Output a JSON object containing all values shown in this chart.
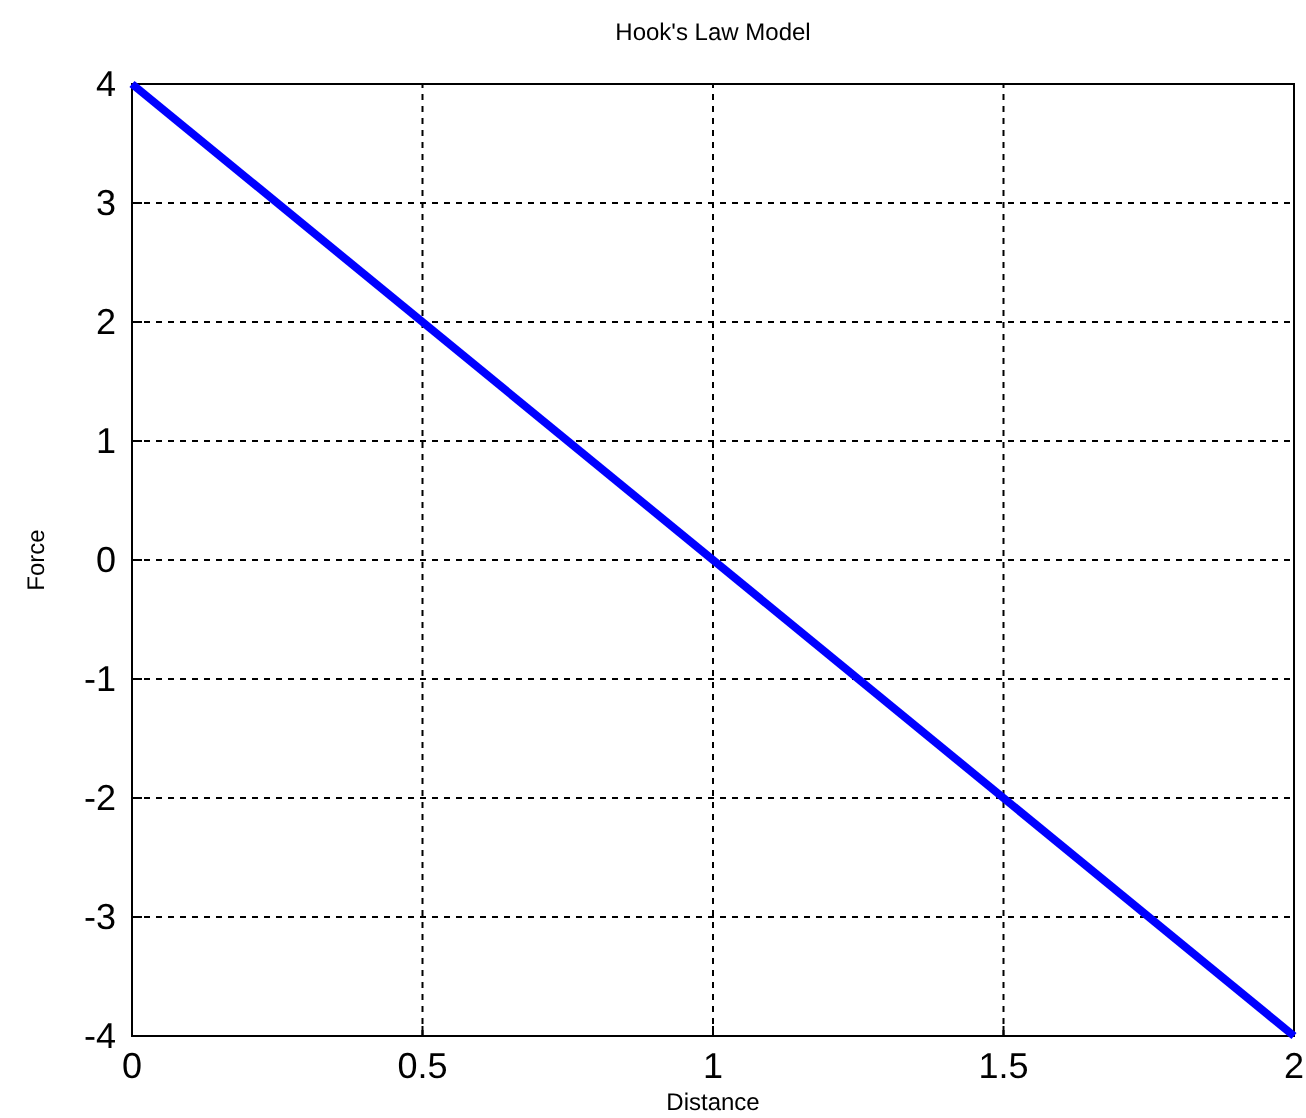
{
  "chart_data": {
    "type": "line",
    "title": "Hook's Law Model",
    "xlabel": "Distance",
    "ylabel": "Force",
    "xlim": [
      0,
      2
    ],
    "ylim": [
      -4,
      4
    ],
    "xticks": [
      0,
      0.5,
      1,
      1.5,
      2
    ],
    "yticks": [
      -4,
      -3,
      -2,
      -1,
      0,
      1,
      2,
      3,
      4
    ],
    "grid": true,
    "series": [
      {
        "color": "#0000ff",
        "x": [
          0,
          2
        ],
        "values": [
          4,
          -4
        ]
      }
    ]
  }
}
